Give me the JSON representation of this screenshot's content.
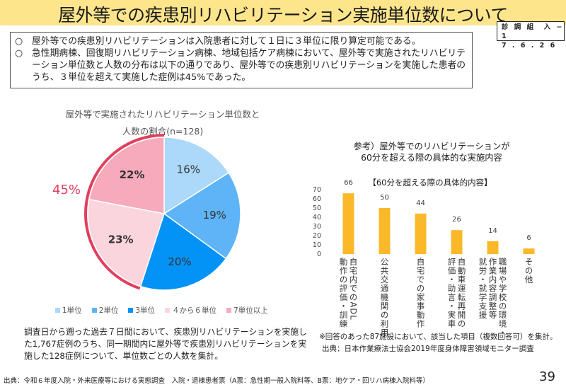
{
  "header": {
    "title": "屋外等での疾患別リハビリテーション実施単位数について",
    "doc_id_line1": "診 調 組　入 − 1",
    "doc_id_line2": "7 . 6 . 2 6"
  },
  "summary": {
    "bullet_mark": "○",
    "bullets": [
      "屋外等での疾患別リハビリテーションは入院患者に対して１日に３単位に限り算定可能である。",
      "急性期病棟、回復期リハビリテーション病棟、地域包括ケア病棟において、屋外等で実施されたリハビリテーション単位数と人数の分布は以下の通りであり、屋外等での疾患別リハビリテーションを実施した患者のうち、３単位を超えて実施した症例は45%であった。"
    ]
  },
  "pie_section": {
    "title_line1": "屋外等で実施されたリハビリテーション単位数と",
    "title_line2": "人数の割合(n=128)",
    "highlight_label": "45%",
    "highlight_color": "#e0405e",
    "note": "調査日から遡った過去７日間において、疾患別リハビリテーションを実施した1,767症例のうち、同一期間内に屋外等で疾患別リハビリテーションを実施した128症例について、単位数ごとの人数を集計。"
  },
  "bar_section": {
    "title_line1": "参考）屋外等でのリハビリテーションが",
    "title_line2": "60分を超える際の具体的な実施内容",
    "note": "※回答のあった87施設において、該当した項目（複数回答可）を集計。",
    "source": "出典：日本作業療法士協会2019年度身体障害領域モニター調査"
  },
  "footer": {
    "source": "出典：令和６年度入院・外来医療等における実態調査　入院・退棟患者票（A票：急性期一般入院料等、B票：地ケア・回リハ病棟入院料等）",
    "page_number": "39"
  },
  "chart_data": [
    {
      "type": "pie",
      "title": "屋外等で実施されたリハビリテーション単位数と人数の割合(n=128)",
      "categories": [
        "1単位",
        "2単位",
        "3単位",
        "４から６単位",
        "7単位以上"
      ],
      "values": [
        16,
        19,
        20,
        23,
        22
      ],
      "labels": [
        "16%",
        "19%",
        "20%",
        "23%",
        "22%"
      ],
      "colors": [
        "#acd8fa",
        "#5fb4f7",
        "#0392f5",
        "#fbd5de",
        "#f6aabb"
      ],
      "bold_labels": [
        false,
        false,
        false,
        true,
        true
      ],
      "start": "12 o'clock, clockwise",
      "highlight": {
        "categories": [
          "４から６単位",
          "7単位以上"
        ],
        "label": "45%"
      },
      "legend": "bottom"
    },
    {
      "type": "bar",
      "title": "【60分を超える際の具体的内容】",
      "categories": [
        "自宅内でのADL動作の評価・訓練",
        "公共交通機関の利用",
        "自宅での家事動作",
        "自動車運転再開の評価・助言・実車",
        "職場や学校の環境・作業内容調整等就労・就学支援",
        "その他"
      ],
      "category_lines": [
        [
          "自宅内でのADL",
          "動作の評価・訓練"
        ],
        [
          "公共交通機関の利用"
        ],
        [
          "自宅での家事動作"
        ],
        [
          "自動車運転再開の",
          "評価・助言・実車"
        ],
        [
          "職場や学校の環境・",
          "作業内容調整等",
          "就労・就学支援"
        ],
        [
          "その他"
        ]
      ],
      "values": [
        66,
        50,
        44,
        26,
        14,
        6
      ],
      "color": "#fbb829",
      "ylim": [
        0,
        70
      ],
      "yticks": [
        0,
        10,
        20,
        30,
        40,
        50,
        60,
        70
      ],
      "grid": false,
      "xlabel": "",
      "ylabel": ""
    }
  ]
}
